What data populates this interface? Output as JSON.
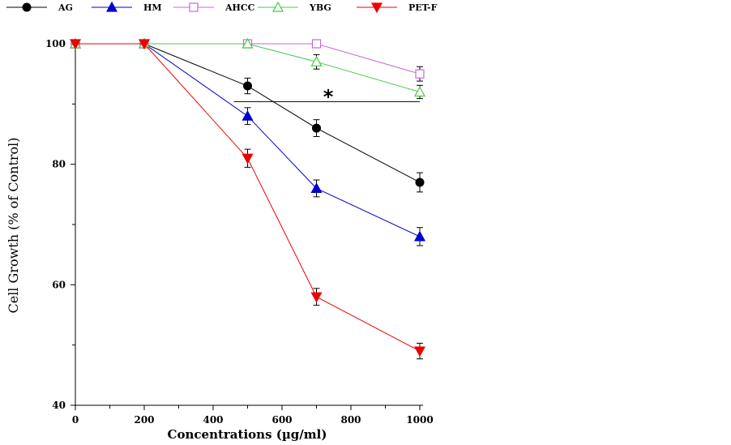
{
  "chart_data": {
    "type": "line",
    "xlabel": "Concentrations (µg/ml)",
    "ylabel": "Cell Growth (% of Control)",
    "xlim": [
      0,
      1000
    ],
    "ylim": [
      40,
      100
    ],
    "x_ticks": [
      0,
      200,
      400,
      600,
      800,
      1000
    ],
    "x_minor_ticks": [
      100,
      300,
      500,
      700,
      900
    ],
    "y_ticks": [
      40,
      60,
      80,
      100
    ],
    "y_minor_ticks": [
      50,
      70,
      90
    ],
    "grid": false,
    "legend_position": "top",
    "x": [
      0,
      200,
      500,
      700,
      1000
    ],
    "series": [
      {
        "name": "AG",
        "color": "#000000",
        "marker": "filled-circle",
        "values": [
          100,
          100,
          93,
          86,
          77
        ],
        "errors": [
          0,
          0,
          1.3,
          1.4,
          1.6
        ]
      },
      {
        "name": "HM",
        "color": "#0000cc",
        "marker": "filled-triangle-up",
        "values": [
          100,
          100,
          88,
          76,
          68
        ],
        "errors": [
          0,
          0,
          1.4,
          1.4,
          1.5
        ]
      },
      {
        "name": "AHCC",
        "color": "#cc66dd",
        "marker": "open-square",
        "values": [
          100,
          100,
          100,
          100,
          95
        ],
        "errors": [
          0,
          0,
          0,
          0,
          1.2
        ]
      },
      {
        "name": "YBG",
        "color": "#44cc44",
        "marker": "open-triangle-up",
        "values": [
          100,
          100,
          100,
          97,
          92
        ],
        "errors": [
          0,
          0,
          0,
          1.2,
          1.1
        ]
      },
      {
        "name": "PET-F",
        "color": "#ee0000",
        "marker": "filled-triangle-down",
        "values": [
          100,
          100,
          81,
          58,
          49
        ],
        "errors": [
          0,
          0,
          1.5,
          1.4,
          1.3
        ]
      }
    ],
    "annotations": [
      {
        "text": "*",
        "bracket_x": [
          460,
          1000
        ],
        "y": 90.4
      }
    ]
  }
}
